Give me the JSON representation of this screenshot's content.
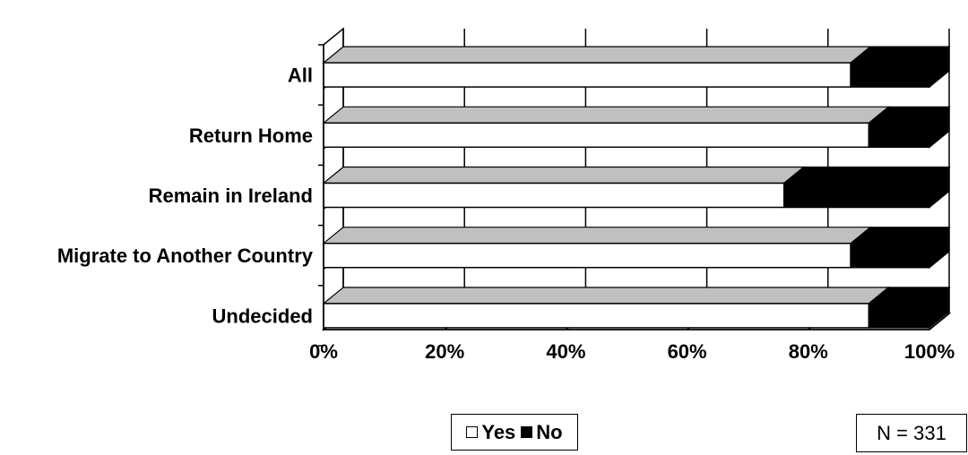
{
  "chart_data": {
    "type": "bar",
    "orientation": "horizontal",
    "stacked": "100%",
    "style": "3d",
    "categories": [
      "All",
      "Return Home",
      "Remain in Ireland",
      "Migrate to Another Country",
      "Undecided"
    ],
    "series": [
      {
        "name": "Yes",
        "color": "#ffffff",
        "values": [
          87,
          90,
          76,
          87,
          90
        ]
      },
      {
        "name": "No",
        "color": "#000000",
        "values": [
          13,
          10,
          24,
          13,
          10
        ]
      }
    ],
    "xlim": [
      0,
      100
    ],
    "xticks": [
      "0%",
      "20%",
      "40%",
      "60%",
      "80%",
      "100%"
    ],
    "grid": true,
    "legend": {
      "position": "bottom-center",
      "items": [
        {
          "label": "Yes",
          "color": "#ffffff"
        },
        {
          "label": "No",
          "color": "#000000"
        }
      ]
    },
    "annotation": "N = 331"
  }
}
